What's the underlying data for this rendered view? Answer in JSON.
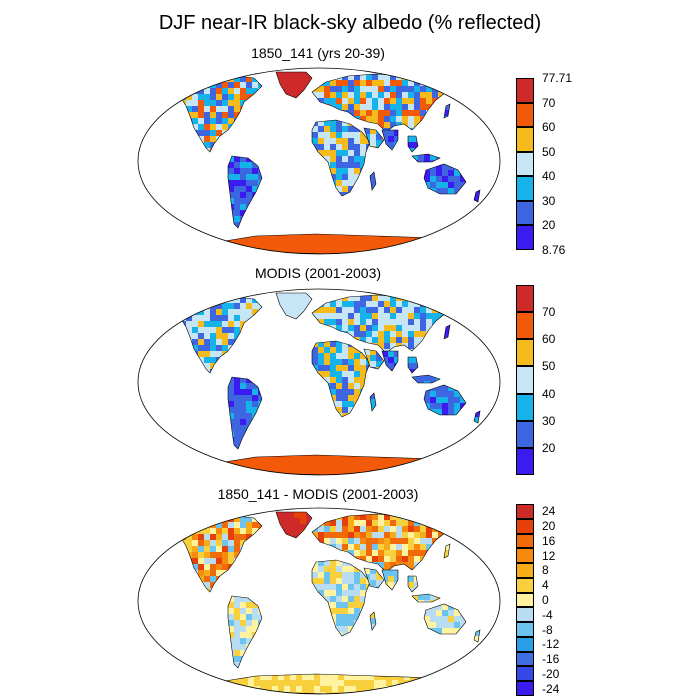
{
  "title": "DJF near-IR black-sky albedo (% reflected)",
  "panels": [
    {
      "id": "model",
      "title": "1850_141 (yrs 20-39)",
      "colorbar": {
        "colors": [
          "#3a1cf0",
          "#3e66e0",
          "#16b2ea",
          "#c6e6f6",
          "#f5bb1c",
          "#f25a0a",
          "#cf2a2a"
        ],
        "labels": [
          "8.76",
          "20",
          "30",
          "40",
          "50",
          "60",
          "70",
          "77.71"
        ],
        "top_label": "77.71",
        "bottom_label": "8.76"
      }
    },
    {
      "id": "modis",
      "title": "MODIS (2001-2003)",
      "colorbar": {
        "colors": [
          "#3a1cf0",
          "#3e66e0",
          "#16b2ea",
          "#c6e6f6",
          "#f5bb1c",
          "#f25a0a",
          "#cf2a2a"
        ],
        "labels": [
          "",
          "20",
          "30",
          "40",
          "50",
          "60",
          "70",
          ""
        ]
      }
    },
    {
      "id": "diff",
      "title": "1850_141 - MODIS (2001-2003)",
      "colorbar": {
        "colors": [
          "#3a1cf0",
          "#3549e6",
          "#3d6ee2",
          "#2a9ee6",
          "#6cc4ee",
          "#b8ddf2",
          "#fff3a0",
          "#f8cf3c",
          "#f5ac18",
          "#f58a0e",
          "#f06a0a",
          "#e6400a",
          "#cf2a2a"
        ],
        "labels": [
          "-24",
          "-20",
          "-16",
          "-12",
          "-8",
          "-4",
          "0",
          "4",
          "8",
          "12",
          "16",
          "20",
          "24"
        ]
      }
    }
  ]
}
